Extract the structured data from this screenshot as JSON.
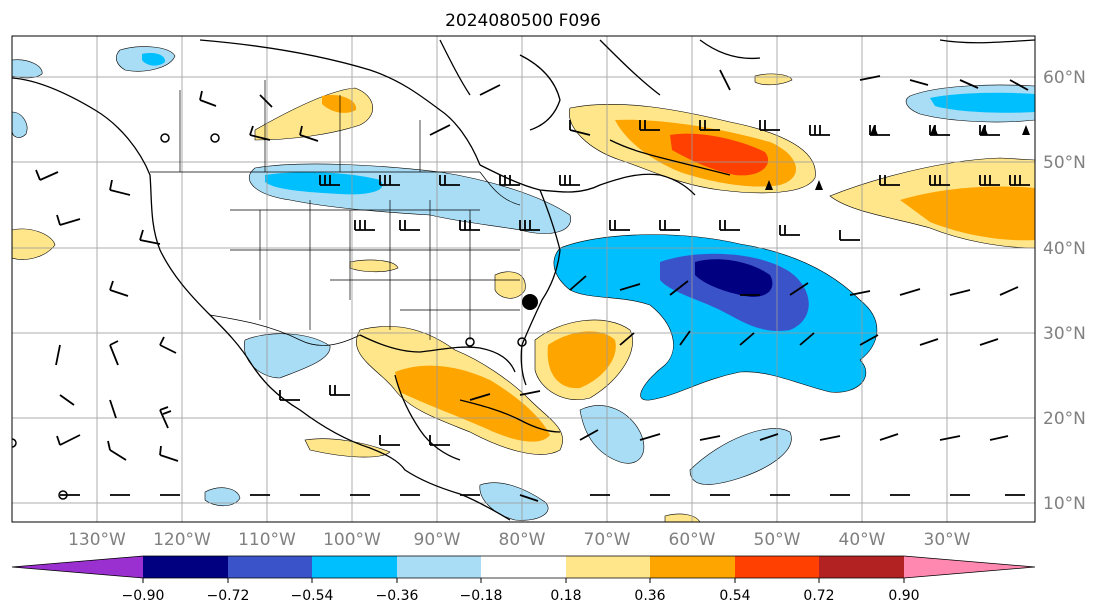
{
  "title": "2024080500 F096",
  "lon_labels": [
    "130°W",
    "120°W",
    "110°W",
    "100°W",
    "90°W",
    "80°W",
    "70°W",
    "60°W",
    "50°W",
    "40°W",
    "30°W"
  ],
  "lat_labels": [
    "60°N",
    "50°N",
    "40°N",
    "30°N",
    "20°N",
    "10°N"
  ],
  "colorbar": {
    "tick_labels": [
      "−0.90",
      "−0.72",
      "−0.54",
      "−0.36",
      "−0.18",
      "0.18",
      "0.36",
      "0.54",
      "0.72",
      "0.90"
    ],
    "colors": [
      "#9b30d0",
      "#000080",
      "#3a53c9",
      "#00bfff",
      "#a8ddf5",
      "#ffffff",
      "#ffe68a",
      "#ffa500",
      "#ff4000",
      "#b22222",
      "#ff88b0"
    ]
  },
  "colors": {
    "coast": "#000000",
    "grid": "#999999",
    "tick_label": "#808080"
  },
  "marker": {
    "name": "storm-position",
    "lon": "79°W",
    "lat": "34°N"
  }
}
